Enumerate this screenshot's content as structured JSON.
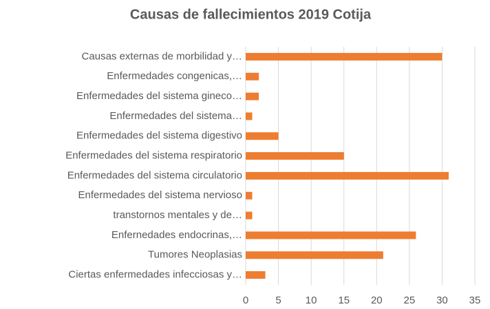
{
  "chart_data": {
    "type": "bar",
    "orientation": "horizontal",
    "title": "Causas de fallecimientos 2019 Cotija",
    "categories": [
      "Causas externas de morbilidad y…",
      "Enfermedades congenicas,…",
      "Enfermedades del sistema gineco…",
      "Enfermedades del sistema…",
      "Enfermedades del sistema digestivo",
      "Enfermedades del sistema respiratorio",
      "Enfermedades del sistema circulatorio",
      "Enfermedades del sistema nervioso",
      "transtornos mentales y de…",
      "Enfernedades endocrinas,…",
      "Tumores Neoplasias",
      "Ciertas enfermedades infecciosas y…"
    ],
    "values": [
      30,
      2,
      2,
      1,
      5,
      15,
      31,
      1,
      1,
      26,
      21,
      3
    ],
    "color": "#ed7d31",
    "xlim": [
      0,
      35
    ],
    "xticks": [
      0,
      5,
      10,
      15,
      20,
      25,
      30,
      35
    ],
    "grid": true
  }
}
